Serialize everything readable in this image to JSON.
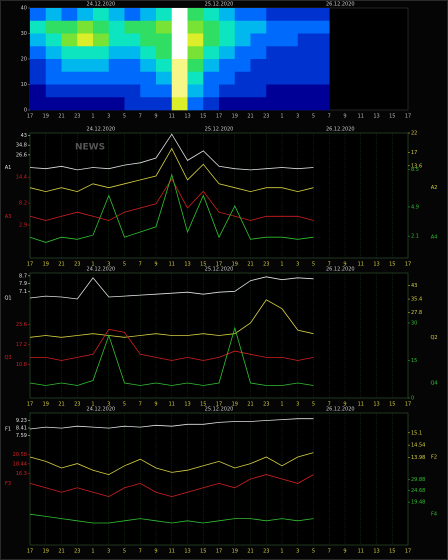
{
  "chart_data": [
    {
      "type": "heatmap",
      "dates": [
        "24.12.2020",
        "25.12.2020",
        "26.12.2020"
      ],
      "categories": [
        "17",
        "19",
        "21",
        "23",
        "1",
        "3",
        "5",
        "7",
        "9",
        "11",
        "13",
        "15",
        "17",
        "19",
        "21",
        "23",
        "1",
        "3",
        "5",
        "7",
        "9",
        "11",
        "13",
        "15",
        "17"
      ],
      "ylim": [
        0,
        40
      ],
      "yticks": [
        0,
        10,
        20,
        30,
        40
      ],
      "values": [
        [
          3,
          4,
          3,
          4,
          5,
          4,
          3,
          4,
          5,
          10,
          6,
          5,
          4,
          3,
          3,
          2,
          2,
          2,
          2,
          null,
          null,
          null,
          null,
          null,
          null
        ],
        [
          5,
          6,
          6,
          7,
          6,
          5,
          6,
          6,
          7,
          10,
          7,
          6,
          5,
          4,
          4,
          3,
          3,
          3,
          3,
          null,
          null,
          null,
          null,
          null,
          null
        ],
        [
          4,
          5,
          7,
          8,
          7,
          5,
          5,
          6,
          6,
          10,
          8,
          6,
          5,
          4,
          3,
          3,
          3,
          2,
          2,
          null,
          null,
          null,
          null,
          null,
          null
        ],
        [
          3,
          4,
          5,
          5,
          5,
          4,
          4,
          5,
          6,
          10,
          7,
          5,
          4,
          3,
          3,
          2,
          2,
          2,
          2,
          null,
          null,
          null,
          null,
          null,
          null
        ],
        [
          2,
          3,
          4,
          4,
          4,
          3,
          3,
          4,
          5,
          9,
          6,
          4,
          3,
          3,
          2,
          2,
          2,
          2,
          2,
          null,
          null,
          null,
          null,
          null,
          null
        ],
        [
          2,
          3,
          3,
          3,
          3,
          3,
          3,
          3,
          4,
          9,
          5,
          3,
          3,
          2,
          2,
          2,
          2,
          2,
          2,
          null,
          null,
          null,
          null,
          null,
          null
        ],
        [
          1,
          2,
          2,
          2,
          2,
          2,
          2,
          3,
          3,
          9,
          4,
          3,
          2,
          2,
          2,
          1,
          1,
          1,
          1,
          null,
          null,
          null,
          null,
          null,
          null
        ],
        [
          1,
          1,
          1,
          1,
          1,
          1,
          2,
          2,
          2,
          8,
          3,
          2,
          1,
          1,
          1,
          1,
          1,
          1,
          1,
          null,
          null,
          null,
          null,
          null,
          null
        ]
      ]
    },
    {
      "type": "line",
      "grid": true,
      "watermark": "NEWS",
      "dates": [
        "24.12.2020",
        "25.12.2020",
        "26.12.2020"
      ],
      "categories": [
        "17",
        "19",
        "21",
        "23",
        "1",
        "3",
        "5",
        "7",
        "9",
        "11",
        "13",
        "15",
        "17",
        "19",
        "21",
        "23",
        "1",
        "3",
        "5",
        "7",
        "9",
        "11",
        "13",
        "15",
        "17"
      ],
      "series": [
        {
          "name": "A1",
          "color": "#e0e0e0",
          "axis": "y",
          "ylim": [
            -60,
            45
          ],
          "yticks": [
            43,
            34.8,
            26.6
          ],
          "values": [
            16,
            15,
            17,
            14,
            16,
            15,
            18,
            20,
            24,
            44,
            22,
            30,
            17,
            15,
            14,
            15,
            16,
            15,
            16,
            null,
            null,
            null,
            null,
            null,
            null
          ]
        },
        {
          "name": "A2",
          "color": "#d8d040",
          "axis": "y2",
          "ylim": [
            -10,
            22
          ],
          "yticks": [
            22,
            17,
            13.6
          ],
          "values": [
            8,
            7,
            8,
            7,
            9,
            8,
            9,
            10,
            11,
            18,
            10,
            14,
            9,
            8,
            7,
            8,
            8,
            7,
            8,
            null,
            null,
            null,
            null,
            null,
            null
          ]
        },
        {
          "name": "A3",
          "color": "#d02020",
          "axis": "y",
          "ylim": [
            -5,
            25
          ],
          "yticks": [
            14.4,
            8.2,
            2.9
          ],
          "values": [
            5,
            4,
            5,
            6,
            5,
            4,
            6,
            7,
            8,
            14,
            7,
            11,
            6,
            5,
            4,
            5,
            5,
            5,
            4,
            null,
            null,
            null,
            null,
            null,
            null
          ]
        },
        {
          "name": "A4",
          "color": "#30c030",
          "axis": "y2",
          "ylim": [
            0,
            12
          ],
          "yticks": [
            8.5,
            4.9,
            2.1
          ],
          "values": [
            2,
            1.5,
            2,
            1.8,
            2.2,
            6,
            2,
            2.5,
            3,
            8,
            2.5,
            6,
            2,
            5,
            1.8,
            2,
            2,
            1.8,
            2,
            null,
            null,
            null,
            null,
            null,
            null
          ]
        }
      ]
    },
    {
      "type": "line",
      "grid": true,
      "dates": [
        "24.12.2020",
        "25.12.2020",
        "26.12.2020"
      ],
      "categories": [
        "17",
        "19",
        "21",
        "23",
        "1",
        "3",
        "5",
        "7",
        "9",
        "11",
        "13",
        "15",
        "17",
        "19",
        "21",
        "23",
        "1",
        "3",
        "5",
        "7",
        "9",
        "11",
        "13",
        "15",
        "17"
      ],
      "series": [
        {
          "name": "Q1",
          "color": "#e0e0e0",
          "axis": "y",
          "ylim": [
            -4,
            9
          ],
          "yticks": [
            8.7,
            7.9,
            7.1
          ],
          "values": [
            6.4,
            6.6,
            6.5,
            6.3,
            8.5,
            6.5,
            6.6,
            6.7,
            6.8,
            6.9,
            7.0,
            6.8,
            7.0,
            7.1,
            8.2,
            8.6,
            8.3,
            8.5,
            8.4,
            null,
            null,
            null,
            null,
            null,
            null
          ]
        },
        {
          "name": "Q2",
          "color": "#d8d040",
          "axis": "y2",
          "ylim": [
            -20,
            50
          ],
          "yticks": [
            43,
            35.4,
            27.8
          ],
          "values": [
            14,
            15,
            14,
            15,
            16,
            15,
            14,
            15,
            16,
            15,
            15,
            16,
            15,
            16,
            22,
            35,
            30,
            18,
            16,
            null,
            null,
            null,
            null,
            null,
            null
          ]
        },
        {
          "name": "Q3",
          "color": "#d02020",
          "axis": "y",
          "ylim": [
            0,
            40
          ],
          "yticks": [
            23.6,
            17.2,
            10.8
          ],
          "values": [
            13,
            13,
            12,
            13,
            14,
            22,
            21,
            14,
            13,
            12,
            13,
            12,
            13,
            15,
            14,
            13,
            13,
            12,
            13,
            null,
            null,
            null,
            null,
            null,
            null
          ]
        },
        {
          "name": "Q4",
          "color": "#30c030",
          "axis": "y2",
          "ylim": [
            0,
            50
          ],
          "yticks": [
            30,
            15,
            0
          ],
          "values": [
            6,
            5,
            6,
            5,
            7,
            25,
            6,
            5,
            6,
            5,
            6,
            5,
            6,
            28,
            6,
            5,
            5,
            6,
            5,
            null,
            null,
            null,
            null,
            null,
            null
          ]
        }
      ]
    },
    {
      "type": "line",
      "grid": true,
      "dates": [
        "24.12.2020",
        "25.12.2020",
        "26.12.2020"
      ],
      "categories": [
        "17",
        "19",
        "21",
        "23",
        "1",
        "3",
        "5",
        "7",
        "9",
        "11",
        "13",
        "15",
        "17",
        "19",
        "21",
        "23",
        "1",
        "3",
        "5",
        "7",
        "9",
        "11",
        "13",
        "15",
        "17"
      ],
      "series": [
        {
          "name": "F1",
          "color": "#e0e0e0",
          "axis": "y",
          "ylim": [
            -4,
            10
          ],
          "yticks": [
            9.23,
            8.41,
            7.59
          ],
          "values": [
            8.3,
            8.5,
            8.4,
            8.6,
            8.5,
            8.4,
            8.6,
            8.5,
            8.7,
            8.6,
            8.8,
            8.8,
            9.0,
            9.1,
            9.1,
            9.2,
            9.3,
            9.4,
            9.4,
            null,
            null,
            null,
            null,
            null,
            null
          ]
        },
        {
          "name": "F2",
          "color": "#d8d040",
          "axis": "y2",
          "ylim": [
            10,
            16
          ],
          "yticks": [
            15.1,
            14.54,
            13.98
          ],
          "values": [
            14.0,
            13.8,
            13.5,
            13.7,
            13.4,
            13.2,
            13.6,
            13.9,
            13.5,
            13.3,
            13.4,
            13.6,
            13.8,
            13.5,
            13.7,
            14.0,
            13.6,
            14.0,
            14.2,
            null,
            null,
            null,
            null,
            null,
            null
          ]
        },
        {
          "name": "F3",
          "color": "#d02020",
          "axis": "y",
          "ylim": [
            0,
            30
          ],
          "yticks": [
            20.58,
            18.44,
            16.3
          ],
          "values": [
            14,
            13,
            12,
            13,
            12,
            11,
            13,
            14,
            12,
            11,
            12,
            13,
            14,
            13,
            15,
            16,
            15,
            14,
            16,
            null,
            null,
            null,
            null,
            null,
            null
          ]
        },
        {
          "name": "F4",
          "color": "#30c030",
          "axis": "y2",
          "ylim": [
            0,
            60
          ],
          "yticks": [
            29.88,
            24.68,
            19.48
          ],
          "values": [
            14,
            13,
            12,
            11,
            10,
            10,
            11,
            12,
            11,
            10,
            11,
            10,
            11,
            12,
            12,
            11,
            12,
            11,
            12,
            null,
            null,
            null,
            null,
            null,
            null
          ]
        }
      ]
    }
  ]
}
